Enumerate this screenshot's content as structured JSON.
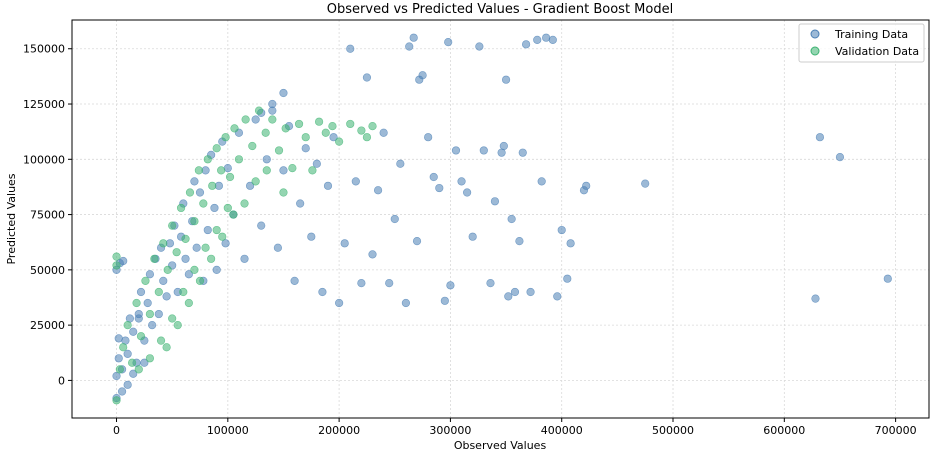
{
  "chart_data": {
    "type": "scatter",
    "title": "Observed vs Predicted Values - Gradient Boost Model",
    "xlabel": "Observed Values",
    "ylabel": "Predicted Values",
    "xlim": [
      -40000,
      730000
    ],
    "ylim": [
      -17000,
      163000
    ],
    "x_ticks": [
      0,
      100000,
      200000,
      300000,
      400000,
      500000,
      600000,
      700000
    ],
    "x_tick_labels": [
      "0",
      "100000",
      "200000",
      "300000",
      "400000",
      "500000",
      "600000",
      "700000"
    ],
    "y_ticks": [
      0,
      25000,
      50000,
      75000,
      100000,
      125000,
      150000
    ],
    "y_tick_labels": [
      "0",
      "25000",
      "50000",
      "75000",
      "100000",
      "125000",
      "150000"
    ],
    "grid": true,
    "legend_position": "top-right",
    "series": [
      {
        "name": "Training Data",
        "color": "#4a7fb5",
        "points": [
          [
            0,
            2000
          ],
          [
            2000,
            10000
          ],
          [
            5000,
            5000
          ],
          [
            8000,
            18000
          ],
          [
            10000,
            12000
          ],
          [
            12000,
            28000
          ],
          [
            15000,
            22000
          ],
          [
            18000,
            8000
          ],
          [
            20000,
            30000
          ],
          [
            22000,
            40000
          ],
          [
            25000,
            18000
          ],
          [
            28000,
            35000
          ],
          [
            30000,
            48000
          ],
          [
            32000,
            25000
          ],
          [
            35000,
            55000
          ],
          [
            38000,
            30000
          ],
          [
            40000,
            60000
          ],
          [
            42000,
            45000
          ],
          [
            45000,
            38000
          ],
          [
            48000,
            62000
          ],
          [
            50000,
            52000
          ],
          [
            52000,
            70000
          ],
          [
            55000,
            40000
          ],
          [
            58000,
            65000
          ],
          [
            60000,
            80000
          ],
          [
            62000,
            55000
          ],
          [
            65000,
            48000
          ],
          [
            68000,
            72000
          ],
          [
            70000,
            90000
          ],
          [
            72000,
            60000
          ],
          [
            75000,
            85000
          ],
          [
            78000,
            45000
          ],
          [
            80000,
            95000
          ],
          [
            82000,
            68000
          ],
          [
            85000,
            102000
          ],
          [
            88000,
            78000
          ],
          [
            90000,
            50000
          ],
          [
            92000,
            88000
          ],
          [
            95000,
            108000
          ],
          [
            98000,
            62000
          ],
          [
            100000,
            96000
          ],
          [
            105000,
            75000
          ],
          [
            110000,
            112000
          ],
          [
            115000,
            55000
          ],
          [
            120000,
            88000
          ],
          [
            125000,
            118000
          ],
          [
            130000,
            70000
          ],
          [
            135000,
            100000
          ],
          [
            140000,
            122000
          ],
          [
            145000,
            60000
          ],
          [
            150000,
            95000
          ],
          [
            155000,
            115000
          ],
          [
            160000,
            45000
          ],
          [
            165000,
            80000
          ],
          [
            170000,
            105000
          ],
          [
            175000,
            65000
          ],
          [
            180000,
            98000
          ],
          [
            185000,
            40000
          ],
          [
            190000,
            88000
          ],
          [
            195000,
            110000
          ],
          [
            200000,
            35000
          ],
          [
            205000,
            62000
          ],
          [
            210000,
            150000
          ],
          [
            215000,
            90000
          ],
          [
            220000,
            44000
          ],
          [
            225000,
            137000
          ],
          [
            230000,
            57000
          ],
          [
            235000,
            86000
          ],
          [
            240000,
            112000
          ],
          [
            245000,
            44000
          ],
          [
            250000,
            73000
          ],
          [
            255000,
            98000
          ],
          [
            260000,
            35000
          ],
          [
            263000,
            151000
          ],
          [
            267000,
            155000
          ],
          [
            270000,
            63000
          ],
          [
            272000,
            136000
          ],
          [
            275000,
            138000
          ],
          [
            280000,
            110000
          ],
          [
            285000,
            92000
          ],
          [
            290000,
            87000
          ],
          [
            295000,
            36000
          ],
          [
            298000,
            153000
          ],
          [
            300000,
            43000
          ],
          [
            305000,
            104000
          ],
          [
            310000,
            90000
          ],
          [
            315000,
            85000
          ],
          [
            320000,
            65000
          ],
          [
            326000,
            151000
          ],
          [
            330000,
            104000
          ],
          [
            336000,
            44000
          ],
          [
            340000,
            81000
          ],
          [
            346000,
            103000
          ],
          [
            348000,
            106000
          ],
          [
            350000,
            136000
          ],
          [
            352000,
            38000
          ],
          [
            355000,
            73000
          ],
          [
            358000,
            40000
          ],
          [
            362000,
            63000
          ],
          [
            365000,
            103000
          ],
          [
            368000,
            152000
          ],
          [
            372000,
            40000
          ],
          [
            378000,
            154000
          ],
          [
            382000,
            90000
          ],
          [
            386000,
            155000
          ],
          [
            392000,
            154000
          ],
          [
            396000,
            38000
          ],
          [
            400000,
            68000
          ],
          [
            405000,
            46000
          ],
          [
            408000,
            62000
          ],
          [
            420000,
            86000
          ],
          [
            422000,
            88000
          ],
          [
            475000,
            89000
          ],
          [
            628000,
            37000
          ],
          [
            632000,
            110000
          ],
          [
            650000,
            101000
          ],
          [
            693000,
            46000
          ],
          [
            150000,
            130000
          ],
          [
            140000,
            125000
          ],
          [
            130000,
            121000
          ],
          [
            0,
            -8000
          ],
          [
            5000,
            -5000
          ],
          [
            10000,
            -2000
          ],
          [
            15000,
            3000
          ],
          [
            2000,
            19000
          ],
          [
            0,
            50000
          ],
          [
            3000,
            53000
          ],
          [
            6000,
            54000
          ],
          [
            20000,
            28000
          ],
          [
            25000,
            8000
          ]
        ]
      },
      {
        "name": "Validation Data",
        "color": "#3cb371",
        "points": [
          [
            0,
            -9000
          ],
          [
            0,
            56000
          ],
          [
            0,
            52000
          ],
          [
            3000,
            5000
          ],
          [
            6000,
            15000
          ],
          [
            10000,
            25000
          ],
          [
            14000,
            8000
          ],
          [
            18000,
            35000
          ],
          [
            22000,
            20000
          ],
          [
            26000,
            45000
          ],
          [
            30000,
            30000
          ],
          [
            34000,
            55000
          ],
          [
            38000,
            40000
          ],
          [
            42000,
            62000
          ],
          [
            46000,
            50000
          ],
          [
            50000,
            70000
          ],
          [
            54000,
            58000
          ],
          [
            58000,
            78000
          ],
          [
            62000,
            64000
          ],
          [
            66000,
            85000
          ],
          [
            70000,
            72000
          ],
          [
            74000,
            95000
          ],
          [
            78000,
            80000
          ],
          [
            82000,
            100000
          ],
          [
            86000,
            88000
          ],
          [
            90000,
            105000
          ],
          [
            94000,
            95000
          ],
          [
            98000,
            110000
          ],
          [
            102000,
            92000
          ],
          [
            106000,
            114000
          ],
          [
            110000,
            100000
          ],
          [
            116000,
            118000
          ],
          [
            122000,
            106000
          ],
          [
            128000,
            122000
          ],
          [
            134000,
            112000
          ],
          [
            140000,
            118000
          ],
          [
            146000,
            104000
          ],
          [
            152000,
            114000
          ],
          [
            158000,
            96000
          ],
          [
            164000,
            116000
          ],
          [
            170000,
            110000
          ],
          [
            176000,
            95000
          ],
          [
            182000,
            117000
          ],
          [
            188000,
            112000
          ],
          [
            194000,
            115000
          ],
          [
            200000,
            108000
          ],
          [
            210000,
            116000
          ],
          [
            220000,
            113000
          ],
          [
            225000,
            110000
          ],
          [
            230000,
            115000
          ],
          [
            45000,
            15000
          ],
          [
            55000,
            25000
          ],
          [
            65000,
            35000
          ],
          [
            75000,
            45000
          ],
          [
            85000,
            55000
          ],
          [
            95000,
            65000
          ],
          [
            105000,
            75000
          ],
          [
            115000,
            80000
          ],
          [
            125000,
            90000
          ],
          [
            135000,
            95000
          ],
          [
            20000,
            5000
          ],
          [
            30000,
            10000
          ],
          [
            40000,
            18000
          ],
          [
            50000,
            28000
          ],
          [
            60000,
            40000
          ],
          [
            70000,
            50000
          ],
          [
            80000,
            60000
          ],
          [
            90000,
            68000
          ],
          [
            100000,
            78000
          ],
          [
            150000,
            85000
          ]
        ]
      }
    ]
  }
}
